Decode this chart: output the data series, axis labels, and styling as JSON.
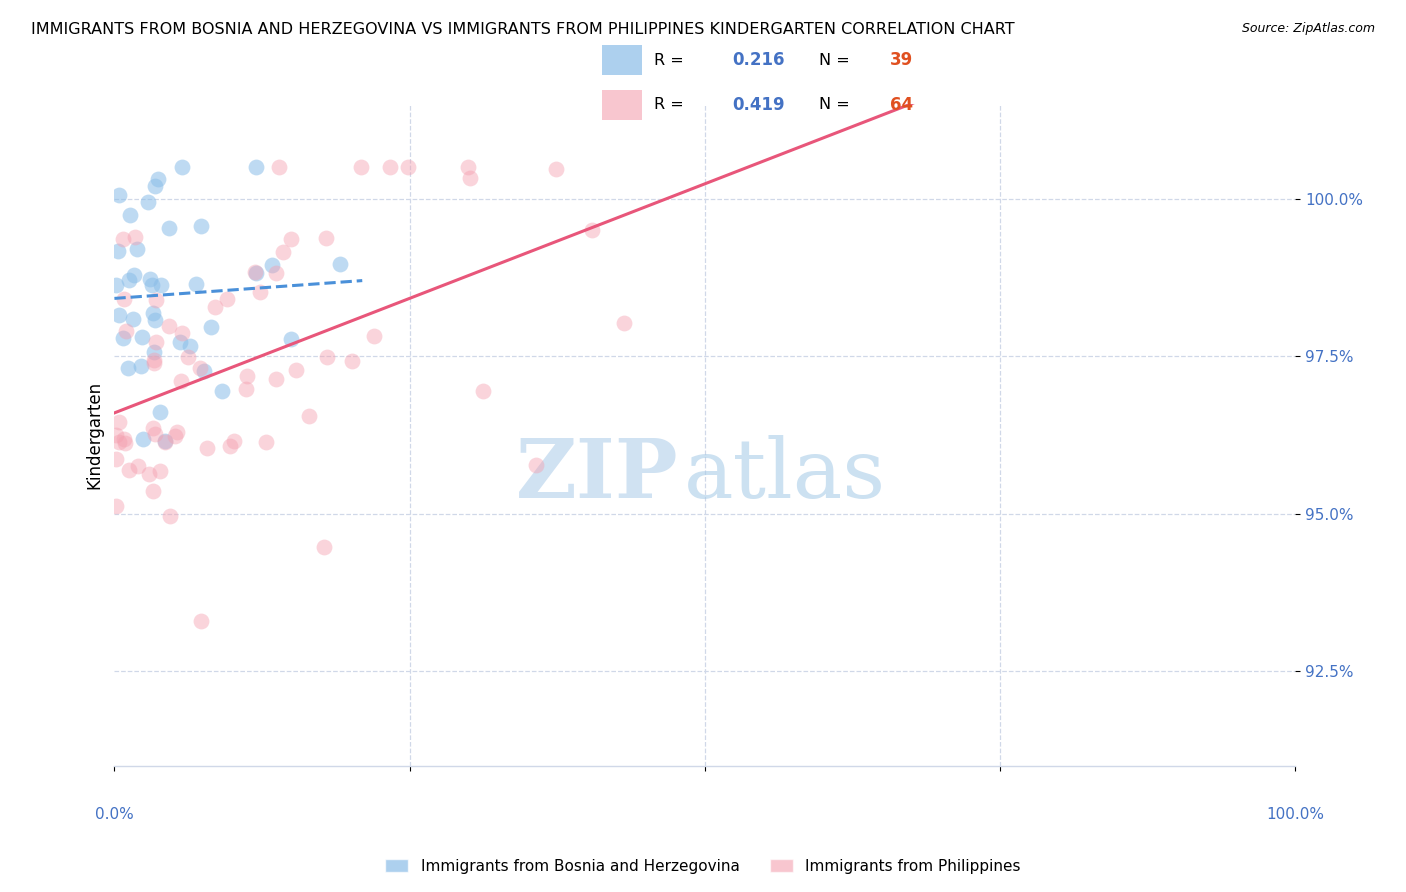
{
  "title": "IMMIGRANTS FROM BOSNIA AND HERZEGOVINA VS IMMIGRANTS FROM PHILIPPINES KINDERGARTEN CORRELATION CHART",
  "source": "Source: ZipAtlas.com",
  "ylabel": "Kindergarten",
  "legend_blue_R": "0.216",
  "legend_blue_N": "39",
  "legend_pink_R": "0.419",
  "legend_pink_N": "64",
  "legend_label_blue": "Immigrants from Bosnia and Herzegovina",
  "legend_label_pink": "Immigrants from Philippines",
  "blue_scatter_color": "#8abde8",
  "pink_scatter_color": "#f4a0b0",
  "blue_line_color": "#4a90d9",
  "pink_line_color": "#e8567a",
  "axis_color": "#4472c4",
  "n_color": "#e05020",
  "xlim": [
    0.0,
    1.0
  ],
  "ylim": [
    91.0,
    101.5
  ],
  "yticks": [
    92.5,
    95.0,
    97.5,
    100.0
  ],
  "ytick_labels": [
    "92.5%",
    "95.0%",
    "97.5%",
    "100.0%"
  ],
  "grid_color": "#d0d8e8",
  "title_fontsize": 11.5,
  "tick_fontsize": 11,
  "label_fontsize": 12,
  "watermark_ZIP_color": "#c8ddf0",
  "watermark_atlas_color": "#aacde8"
}
